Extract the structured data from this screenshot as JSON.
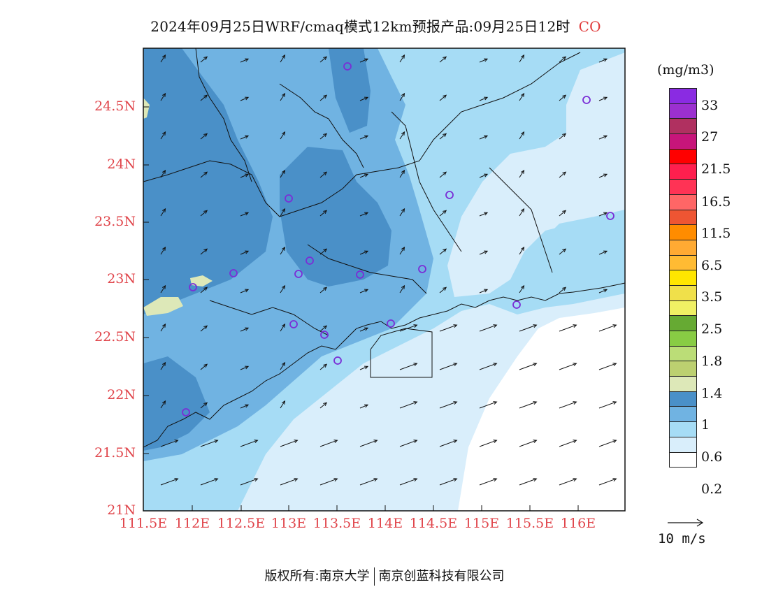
{
  "header": {
    "title_main": "2024年09月25日WRF/cmaq模式12km预报产品:09月25日12时",
    "species": "CO"
  },
  "map": {
    "lat_labels": [
      "24.5N",
      "24N",
      "23.5N",
      "23N",
      "22.5N",
      "22N",
      "21.5N",
      "21N"
    ],
    "lon_labels": [
      "111.5E",
      "112E",
      "112.5E",
      "113E",
      "113.5E",
      "114E",
      "114.5E",
      "115E",
      "115.5E",
      "116E"
    ],
    "lat_range": [
      21,
      25
    ],
    "lon_range": [
      111.5,
      116.7
    ],
    "fill_colors": {
      "lt0_2": "#ffffff",
      "c0_2_0_6": "#d9eefb",
      "c0_6": "#a6dcf5",
      "c0_6_1": "#70b3e2",
      "c1": "#4a90c8",
      "c1_1_4": "#dde8b8"
    },
    "wind_field": "southwest to west, stronger over sea",
    "station_marker_color": "#7a2ed6"
  },
  "legend": {
    "unit": "(mg/m3)",
    "colors": [
      "#8a2be2",
      "#9b30d0",
      "#b03060",
      "#c7157a",
      "#ff0000",
      "#ff1f4e",
      "#ff3355",
      "#ff6666",
      "#ee5533",
      "#ff8c00",
      "#ffaa33",
      "#ffbb33",
      "#ffe600",
      "#f0e04a",
      "#f0f064",
      "#66aa33",
      "#88cc44",
      "#bbdd77",
      "#bcd070",
      "#dde8b8",
      "#4a90c8",
      "#70b3e2",
      "#a6dcf5",
      "#d9eefb",
      "#ffffff"
    ],
    "labels": [
      "33",
      "27",
      "21.5",
      "16.5",
      "11.5",
      "6.5",
      "3.5",
      "2.5",
      "1.8",
      "1.4",
      "1",
      "0.6",
      "0.2"
    ],
    "vector_reference": "10  m/s"
  },
  "footer": {
    "copyright": "版权所有:南京大学",
    "company": "南京创蓝科技有限公司"
  }
}
